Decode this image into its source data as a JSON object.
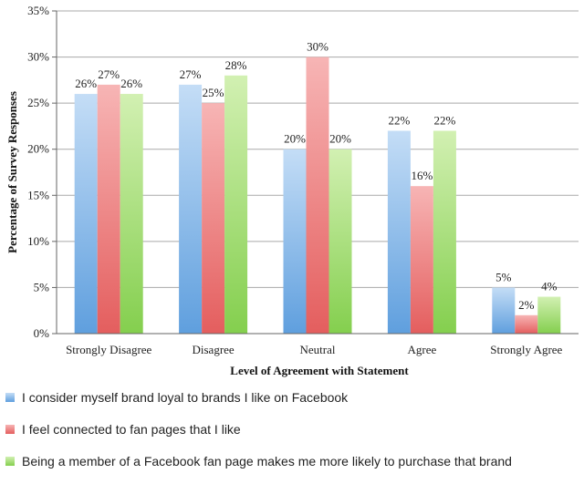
{
  "chart_data": {
    "type": "bar",
    "title": "",
    "xlabel": "Level of Agreement with Statement",
    "ylabel": "Percentage of Survey Responses",
    "categories": [
      "Strongly Disagree",
      "Disagree",
      "Neutral",
      "Agree",
      "Strongly Agree"
    ],
    "ylim": [
      0,
      35
    ],
    "yticks": [
      0,
      5,
      10,
      15,
      20,
      25,
      30,
      35
    ],
    "ytick_labels": [
      "0%",
      "5%",
      "10%",
      "15%",
      "20%",
      "25%",
      "30%",
      "35%"
    ],
    "grid": true,
    "legend_position": "bottom",
    "series": [
      {
        "name": "I consider myself brand loyal to brands I like on Facebook",
        "values": [
          26,
          27,
          20,
          22,
          5
        ],
        "value_labels": [
          "26%",
          "27%",
          "20%",
          "22%",
          "5%"
        ],
        "color": "#8db8e8"
      },
      {
        "name": "I feel connected to fan pages that I like",
        "values": [
          27,
          25,
          30,
          16,
          2
        ],
        "value_labels": [
          "27%",
          "25%",
          "30%",
          "16%",
          "2%"
        ],
        "color": "#f08a8a"
      },
      {
        "name": "Being a member of a Facebook fan page makes me more likely to purchase that brand",
        "values": [
          26,
          28,
          20,
          22,
          4
        ],
        "value_labels": [
          "26%",
          "28%",
          "20%",
          "22%",
          "4%"
        ],
        "color": "#a8de7a"
      }
    ]
  }
}
